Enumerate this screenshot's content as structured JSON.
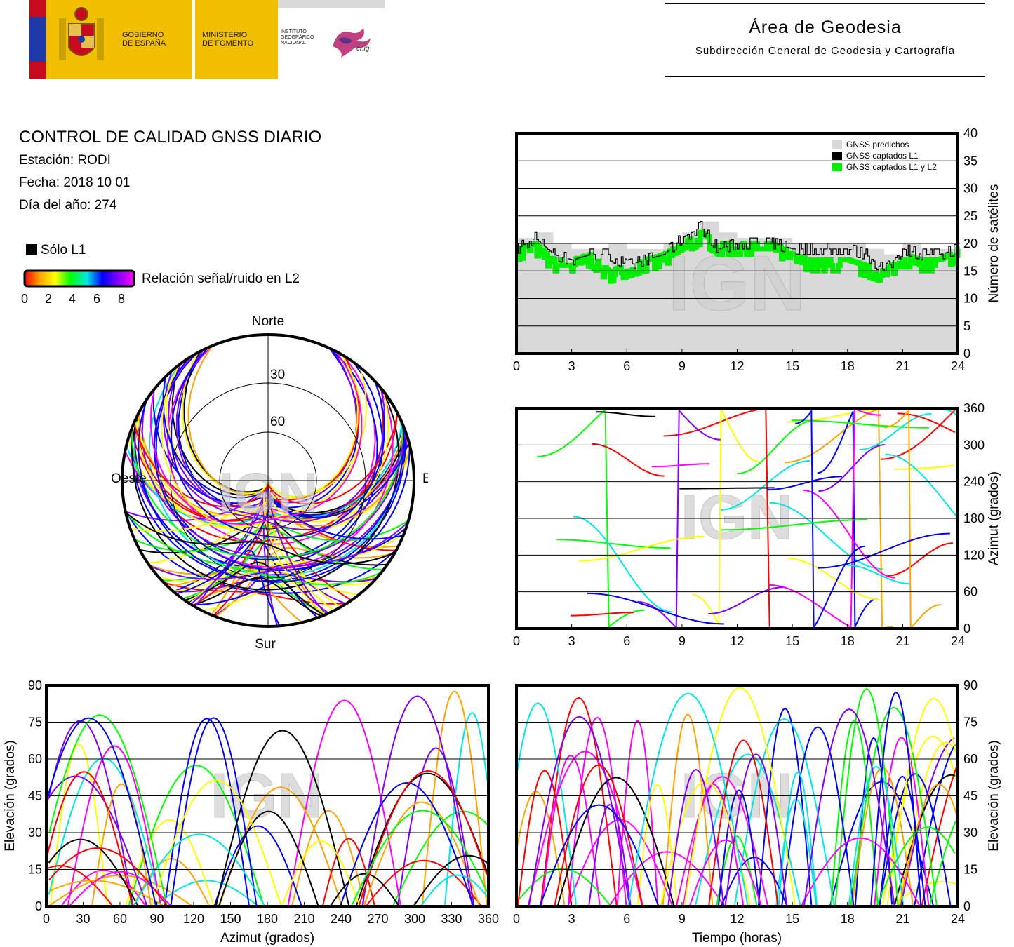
{
  "header": {
    "gov_line1": "GOBIERNO",
    "gov_line2": "DE ESPAÑA",
    "min_line1": "MINISTERIO",
    "min_line2": "DE FOMENTO",
    "ign_line1": "INSTITUTO",
    "ign_line2": "GEOGRÁFICO",
    "ign_line3": "NACIONAL",
    "cnig": "cnig",
    "area_title": "Área de Geodesia",
    "area_subtitle": "Subdirección General de Geodesia y Cartografía"
  },
  "info": {
    "title": "CONTROL DE CALIDAD GNSS DIARIO",
    "station": "Estación: RODI",
    "date": "Fecha: 2018 10 01",
    "doy": "Día del año: 274"
  },
  "legend": {
    "l1_only": "Sólo L1",
    "snr_label": "Relación señal/ruido en L2",
    "snr_ticks": [
      "0",
      "2",
      "4",
      "6",
      "8"
    ]
  },
  "colors": {
    "predicted": "#d9d9d9",
    "captured_l1": "#000000",
    "captured_l1_l2": "#00ee00",
    "snr_scale": [
      "#ff0000",
      "#ffa500",
      "#ffff00",
      "#00ff00",
      "#00e5e5",
      "#0000ff",
      "#7f00ff",
      "#ff00ff"
    ]
  },
  "watermark": "IGN",
  "skyplot": {
    "north": "Norte",
    "south": "Sur",
    "east": "Este",
    "west": "Oeste",
    "ring_labels": [
      "30",
      "60"
    ]
  },
  "chart_data": [
    {
      "type": "line",
      "id": "satellite-count",
      "ylabel": "Número de satélites",
      "xlim": [
        0,
        24
      ],
      "ylim": [
        0,
        40
      ],
      "xticks": [
        "0",
        "3",
        "6",
        "9",
        "12",
        "15",
        "18",
        "21",
        "24"
      ],
      "yticks": [
        "0",
        "5",
        "10",
        "15",
        "20",
        "25",
        "30",
        "35",
        "40"
      ],
      "grid": true,
      "legend_position": "top-right",
      "series": [
        {
          "name": "GNSS predichos",
          "x": [
            0,
            1,
            2,
            3,
            4,
            5,
            6,
            7,
            8,
            9,
            10,
            11,
            12,
            13,
            14,
            15,
            16,
            17,
            18,
            19,
            20,
            21,
            22,
            23,
            24
          ],
          "values": [
            21,
            22,
            20,
            19,
            19,
            20,
            19,
            19,
            20,
            22,
            24,
            22,
            21,
            21,
            21,
            20,
            20,
            20,
            20,
            19,
            18,
            20,
            19,
            19,
            20
          ]
        },
        {
          "name": "GNSS captados L1",
          "x": [
            0,
            1,
            2,
            3,
            4,
            5,
            6,
            7,
            8,
            9,
            10,
            11,
            12,
            13,
            14,
            15,
            16,
            17,
            18,
            19,
            20,
            21,
            22,
            23,
            24
          ],
          "values": [
            19,
            21,
            18,
            17,
            18,
            18,
            16,
            17,
            18,
            21,
            23,
            19,
            20,
            20,
            20,
            19,
            19,
            19,
            19,
            18,
            15,
            19,
            18,
            18,
            19
          ]
        },
        {
          "name": "GNSS captados L1 y L2",
          "x": [
            0,
            1,
            2,
            3,
            4,
            5,
            6,
            7,
            8,
            9,
            10,
            11,
            12,
            13,
            14,
            15,
            16,
            17,
            18,
            19,
            20,
            21,
            22,
            23,
            24
          ],
          "values": [
            18,
            19,
            16,
            16,
            17,
            14,
            15,
            16,
            17,
            19,
            21,
            19,
            19,
            19,
            19,
            17,
            16,
            16,
            16,
            15,
            14,
            17,
            16,
            16,
            18
          ]
        }
      ]
    },
    {
      "type": "scatter",
      "id": "azimuth-vs-time",
      "ylabel": "Azimut (grados)",
      "xlim": [
        0,
        24
      ],
      "ylim": [
        0,
        360
      ],
      "xticks": [
        "0",
        "3",
        "6",
        "9",
        "12",
        "15",
        "18",
        "21",
        "24"
      ],
      "yticks": [
        "0",
        "60",
        "120",
        "180",
        "240",
        "300",
        "360"
      ],
      "grid": true
    },
    {
      "type": "scatter",
      "id": "elevation-vs-azimuth",
      "xlabel": "Azimut (grados)",
      "ylabel": "Elevación (grados)",
      "xlim": [
        0,
        360
      ],
      "ylim": [
        0,
        90
      ],
      "xticks": [
        "0",
        "30",
        "60",
        "90",
        "120",
        "150",
        "180",
        "210",
        "240",
        "270",
        "300",
        "330",
        "360"
      ],
      "yticks": [
        "0",
        "15",
        "30",
        "45",
        "60",
        "75",
        "90"
      ],
      "grid": true
    },
    {
      "type": "scatter",
      "id": "elevation-vs-time",
      "xlabel": "Tiempo (horas)",
      "ylabel": "Elevación (grados)",
      "xlim": [
        0,
        24
      ],
      "ylim": [
        0,
        90
      ],
      "xticks": [
        "0",
        "3",
        "6",
        "9",
        "12",
        "15",
        "18",
        "21",
        "24"
      ],
      "yticks": [
        "0",
        "15",
        "30",
        "45",
        "60",
        "75",
        "90"
      ],
      "grid": true
    }
  ]
}
